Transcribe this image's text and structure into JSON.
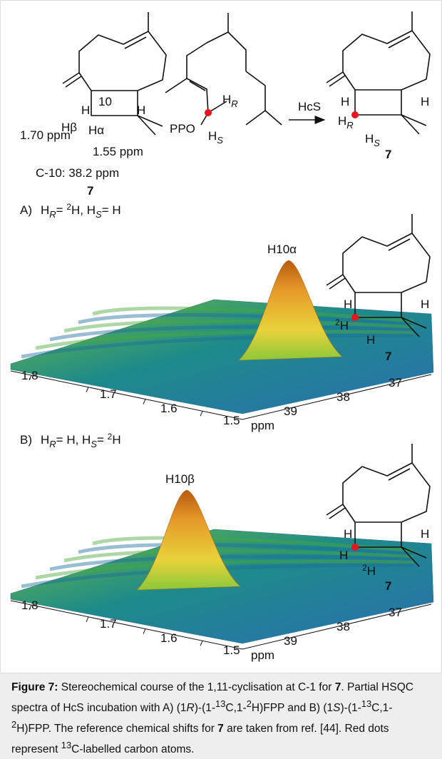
{
  "scheme": {
    "left": {
      "h_left": "H",
      "c10": "10",
      "h_right": "H",
      "h_beta": "Hβ",
      "h_alpha": "Hα",
      "shift_beta": "1.70 ppm",
      "shift_alpha": "1.55 ppm",
      "shift_c10": "C-10: 38.2 ppm",
      "compound": "7"
    },
    "middle": {
      "h_r": "H",
      "h_r_sub": "R",
      "ppo": "PPO",
      "h_s": "H",
      "h_s_sub": "S"
    },
    "arrow_label": "HcS",
    "right": {
      "h_left": "H",
      "h_right": "H",
      "h_r": "H",
      "h_r_sub": "R",
      "h_s": "H",
      "h_s_sub": "S",
      "compound": "7"
    }
  },
  "panel_a": {
    "label": "A)",
    "condition": [
      "H",
      "R",
      "= ",
      "2",
      "H, H",
      "S",
      "= H"
    ],
    "peak_label": "H10α",
    "structure": {
      "h_left": "H",
      "h_right": "H",
      "d_sup": "2",
      "d_h": "H",
      "h_bottom": "H",
      "compound": "7"
    },
    "x_axis": {
      "ticks": [
        "1.8",
        "1.7",
        "1.6",
        "1.5"
      ],
      "unit": "ppm"
    },
    "y_axis": {
      "ticks": [
        "39",
        "38",
        "37"
      ]
    }
  },
  "panel_b": {
    "label": "B)",
    "condition": [
      "H",
      "R",
      "= H, H",
      "S",
      "= ",
      "2",
      "H"
    ],
    "peak_label": "H10β",
    "structure": {
      "h_left": "H",
      "h_right": "H",
      "h_mid": "H",
      "d_sup": "2",
      "d_h": "H",
      "compound": "7"
    },
    "x_axis": {
      "ticks": [
        "1.8",
        "1.7",
        "1.6",
        "1.5"
      ],
      "unit": "ppm"
    },
    "y_axis": {
      "ticks": [
        "39",
        "38",
        "37"
      ]
    }
  },
  "caption": {
    "label": "Figure 7:",
    "parts": [
      " Stereochemical course of the 1,11-cyclisation at C-1 for ",
      "7",
      ". Partial HSQC spectra of HcS incubation with A) (1",
      "R",
      ")-(1-",
      "13",
      "C,1-",
      "2",
      "H)FPP and B) (1",
      "S",
      ")-(1-",
      "13",
      "C,1-",
      "2",
      "H)FPP. The reference chemical shifts for ",
      "7",
      " are taken from ref. [44]. Red dots represent ",
      "13",
      "C-labelled carbon atoms."
    ]
  }
}
